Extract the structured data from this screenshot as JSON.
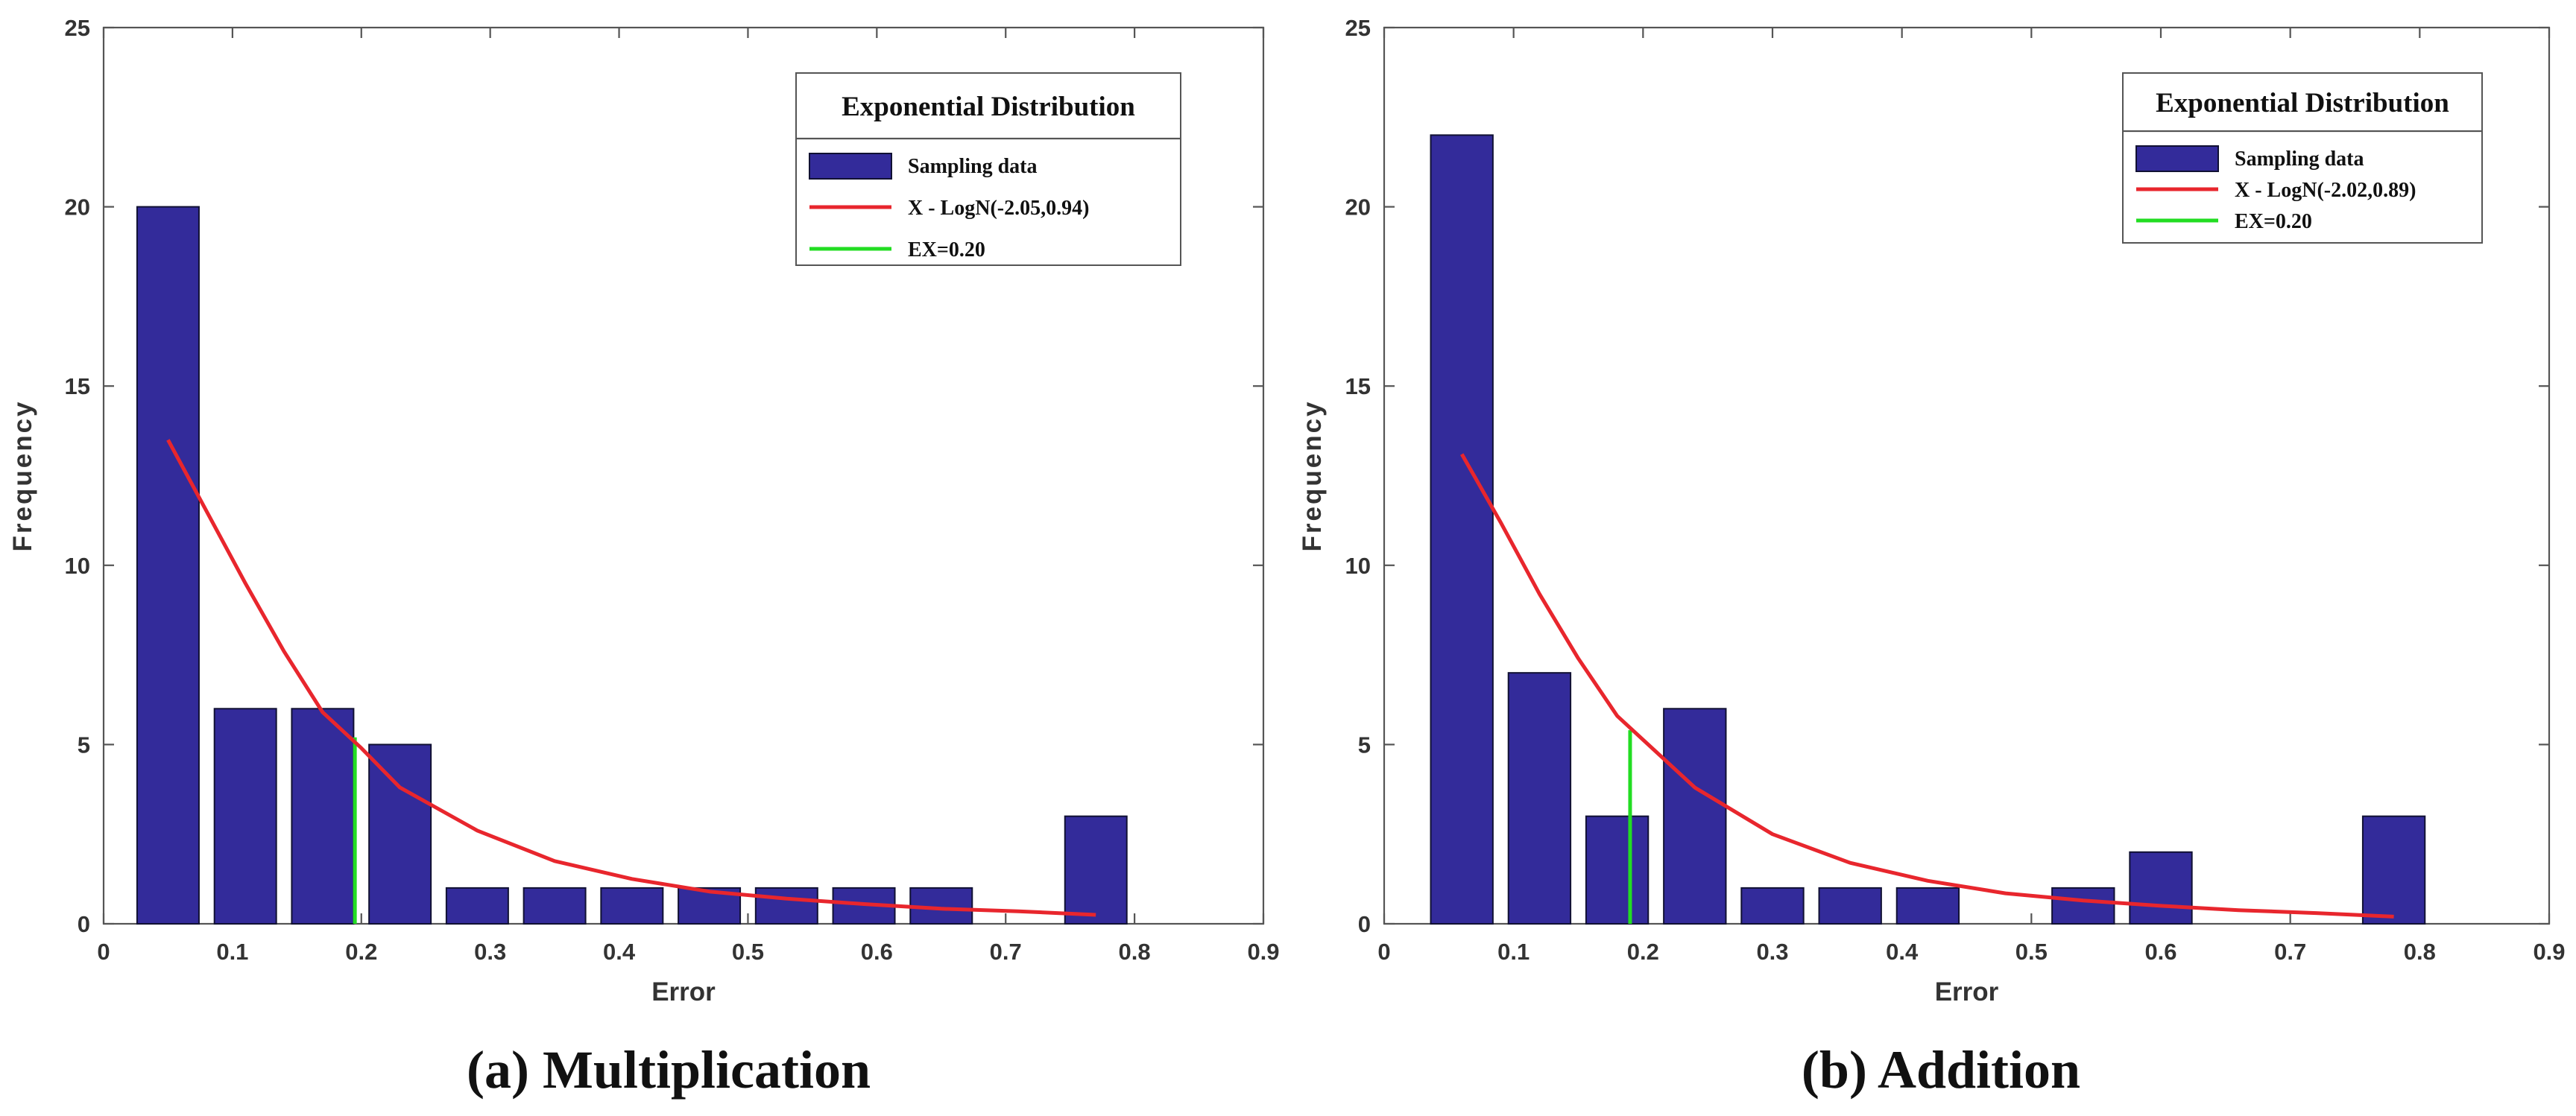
{
  "chart_data": [
    {
      "type": "bar",
      "caption": "(a) Multiplication",
      "xlabel": "Error",
      "ylabel": "Frequency",
      "xlim": [
        0,
        0.9
      ],
      "ylim": [
        0,
        25
      ],
      "xticks": [
        "0",
        "0.1",
        "0.2",
        "0.3",
        "0.4",
        "0.5",
        "0.6",
        "0.7",
        "0.8",
        "0.9"
      ],
      "yticks": [
        "0",
        "5",
        "10",
        "15",
        "20",
        "25"
      ],
      "bars": [
        {
          "x": 0.05,
          "value": 20
        },
        {
          "x": 0.11,
          "value": 6
        },
        {
          "x": 0.17,
          "value": 6
        },
        {
          "x": 0.23,
          "value": 5
        },
        {
          "x": 0.29,
          "value": 1
        },
        {
          "x": 0.35,
          "value": 1
        },
        {
          "x": 0.41,
          "value": 1
        },
        {
          "x": 0.47,
          "value": 1
        },
        {
          "x": 0.53,
          "value": 1
        },
        {
          "x": 0.59,
          "value": 1
        },
        {
          "x": 0.65,
          "value": 1
        },
        {
          "x": 0.77,
          "value": 3
        }
      ],
      "bar_width": 0.048,
      "fit_curve": {
        "name": "X - LogN(-2.05,0.94)",
        "color": "#e8262d",
        "x": [
          0.05,
          0.08,
          0.11,
          0.14,
          0.17,
          0.2,
          0.23,
          0.29,
          0.35,
          0.41,
          0.47,
          0.53,
          0.59,
          0.65,
          0.71,
          0.77
        ],
        "y": [
          13.5,
          11.5,
          9.5,
          7.6,
          5.9,
          4.9,
          3.8,
          2.6,
          1.75,
          1.25,
          0.9,
          0.7,
          0.55,
          0.42,
          0.35,
          0.25
        ]
      },
      "ex_line": {
        "name": "EX=0.20",
        "x": 0.195,
        "ymax": 5.2,
        "color": "#22dd22"
      },
      "legend": {
        "title": "Exponential Distribution",
        "items": [
          "Sampling data",
          "X - LogN(-2.05,0.94)",
          "EX=0.20"
        ]
      }
    },
    {
      "type": "bar",
      "caption": "(b) Addition",
      "xlabel": "Error",
      "ylabel": "Frequency",
      "xlim": [
        0,
        0.9
      ],
      "ylim": [
        0,
        25
      ],
      "xticks": [
        "0",
        "0.1",
        "0.2",
        "0.3",
        "0.4",
        "0.5",
        "0.6",
        "0.7",
        "0.8",
        "0.9"
      ],
      "yticks": [
        "0",
        "5",
        "10",
        "15",
        "20",
        "25"
      ],
      "bars": [
        {
          "x": 0.06,
          "value": 22
        },
        {
          "x": 0.12,
          "value": 7
        },
        {
          "x": 0.18,
          "value": 3
        },
        {
          "x": 0.24,
          "value": 6
        },
        {
          "x": 0.3,
          "value": 1
        },
        {
          "x": 0.36,
          "value": 1
        },
        {
          "x": 0.42,
          "value": 1
        },
        {
          "x": 0.54,
          "value": 1
        },
        {
          "x": 0.6,
          "value": 2
        },
        {
          "x": 0.78,
          "value": 3
        }
      ],
      "bar_width": 0.048,
      "fit_curve": {
        "name": "X - LogN(-2.02,0.89)",
        "color": "#e8262d",
        "x": [
          0.06,
          0.09,
          0.12,
          0.15,
          0.18,
          0.21,
          0.24,
          0.3,
          0.36,
          0.42,
          0.48,
          0.54,
          0.6,
          0.66,
          0.72,
          0.78
        ],
        "y": [
          13.1,
          11.2,
          9.2,
          7.4,
          5.8,
          4.8,
          3.8,
          2.5,
          1.7,
          1.2,
          0.85,
          0.65,
          0.5,
          0.38,
          0.3,
          0.2
        ]
      },
      "ex_line": {
        "name": "EX=0.20",
        "x": 0.19,
        "ymax": 5.4,
        "color": "#22dd22"
      },
      "legend": {
        "title": "Exponential Distribution",
        "items": [
          "Sampling data",
          " X - LogN(-2.02,0.89)",
          "EX=0.20"
        ]
      }
    }
  ]
}
